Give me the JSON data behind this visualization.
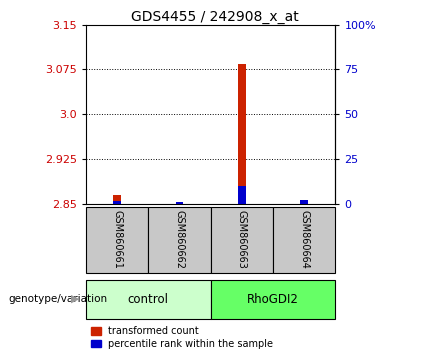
{
  "title": "GDS4455 / 242908_x_at",
  "samples": [
    "GSM860661",
    "GSM860662",
    "GSM860663",
    "GSM860664"
  ],
  "group_colors": [
    "#ccffcc",
    "#66ff66"
  ],
  "sample_bg_color": "#c8c8c8",
  "red_values": [
    2.865,
    2.852,
    3.085,
    2.852
  ],
  "blue_pct": [
    1.5,
    1.0,
    10.0,
    2.0
  ],
  "ylim_left": [
    2.85,
    3.15
  ],
  "ylim_right": [
    0,
    100
  ],
  "yticks_left": [
    2.85,
    2.925,
    3.0,
    3.075,
    3.15
  ],
  "yticks_right": [
    0,
    25,
    50,
    75,
    100
  ],
  "grid_vals": [
    2.925,
    3.0,
    3.075
  ],
  "left_tick_color": "#cc0000",
  "right_tick_color": "#0000cc",
  "legend_red": "transformed count",
  "legend_blue": "percentile rank within the sample",
  "title_fontsize": 10,
  "tick_fontsize": 8,
  "bar_width": 0.12,
  "group_extents": [
    [
      1,
      2,
      "control",
      0
    ],
    [
      3,
      4,
      "RhoGDI2",
      1
    ]
  ]
}
